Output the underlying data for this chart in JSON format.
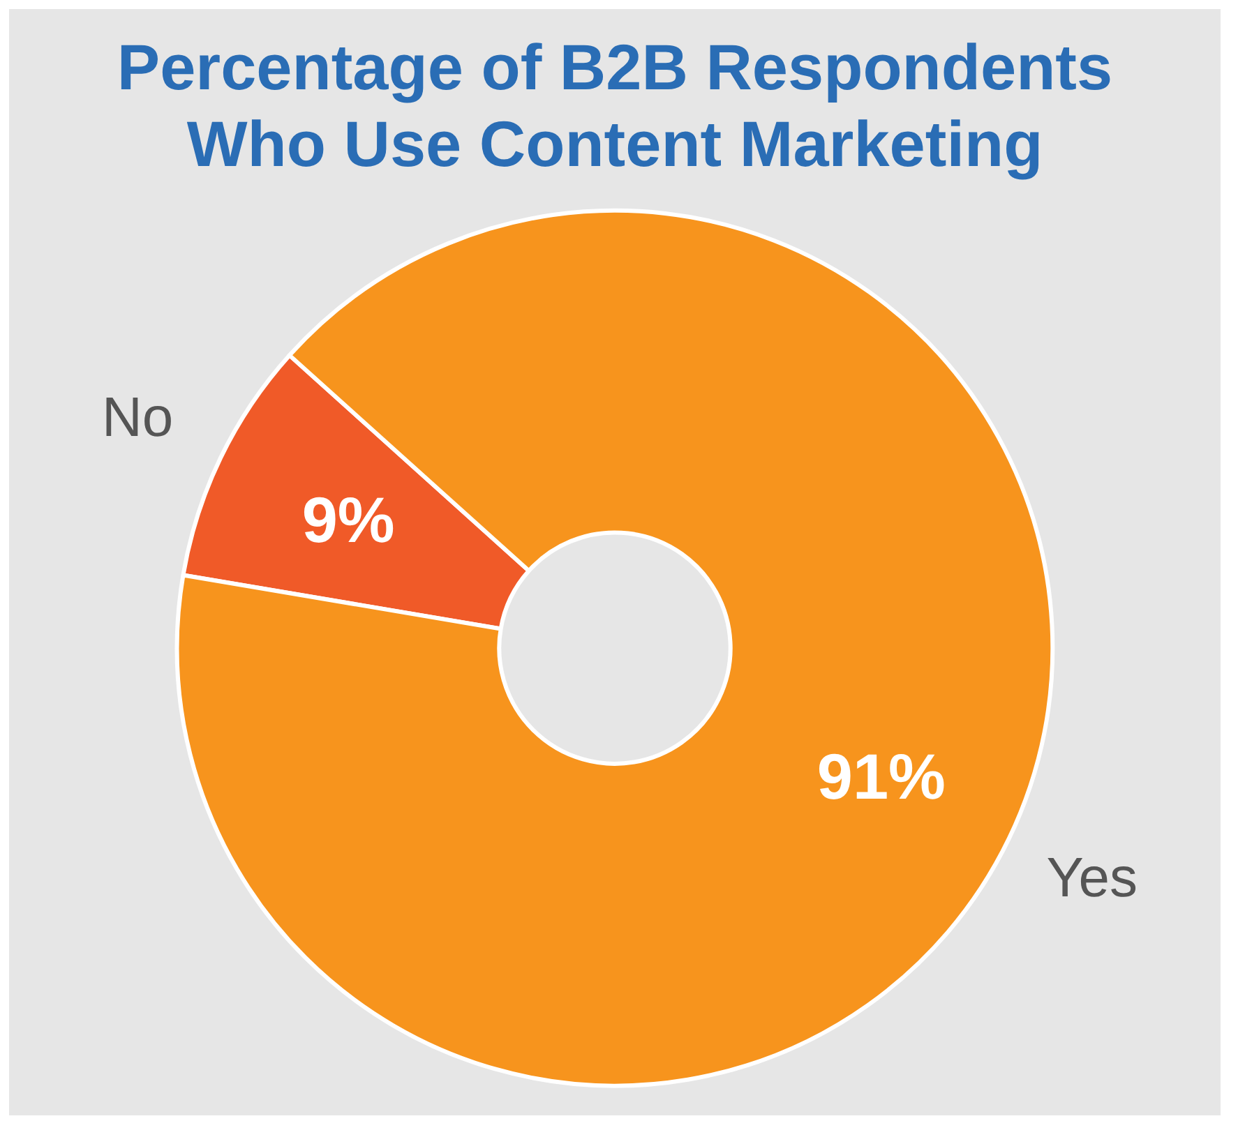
{
  "chart_data": {
    "type": "donut",
    "title": "Percentage of B2B Respondents Who Use Content Marketing",
    "categories": [
      "No",
      "Yes"
    ],
    "values": [
      9,
      91
    ],
    "colors": [
      "#f05a28",
      "#f7941d"
    ],
    "value_labels": [
      "9%",
      "91%"
    ]
  }
}
